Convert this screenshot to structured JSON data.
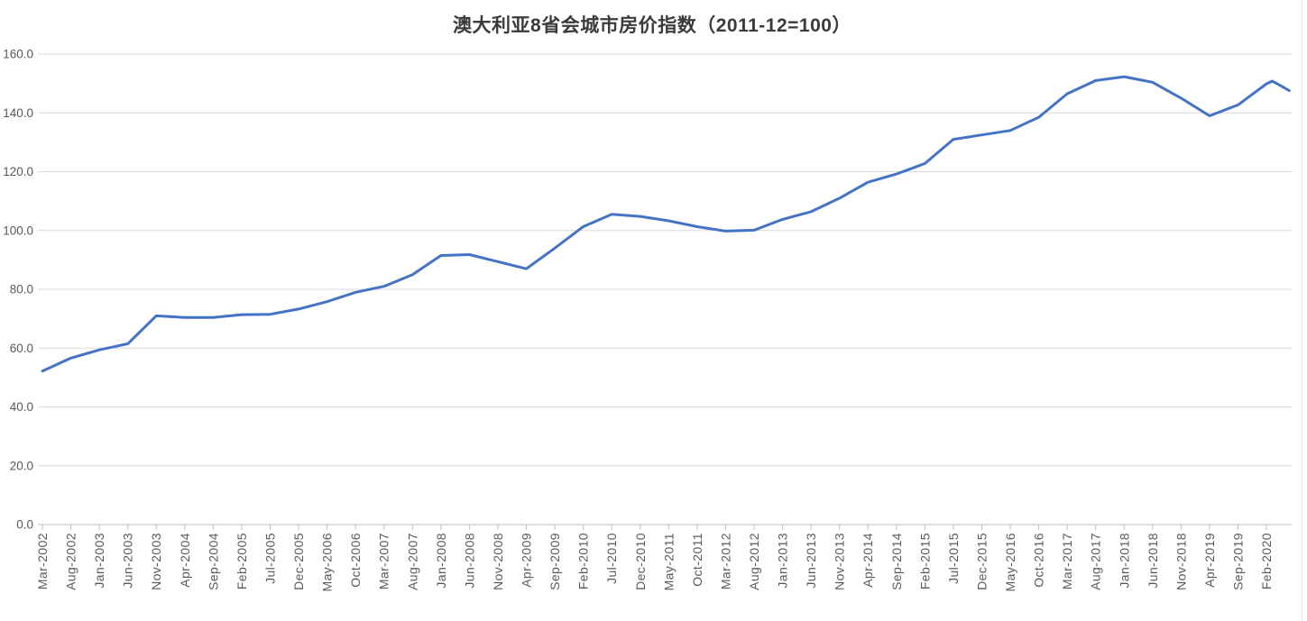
{
  "chart_data": {
    "type": "line",
    "title": "澳大利亚8省会城市房价指数（2011-12=100）",
    "categories": [
      "Mar-2002",
      "Aug-2002",
      "Jan-2003",
      "Jun-2003",
      "Nov-2003",
      "Apr-2004",
      "Sep-2004",
      "Feb-2005",
      "Jul-2005",
      "Dec-2005",
      "May-2006",
      "Oct-2006",
      "Mar-2007",
      "Aug-2007",
      "Jan-2008",
      "Jun-2008",
      "Nov-2008",
      "Apr-2009",
      "Sep-2009",
      "Feb-2010",
      "Jul-2010",
      "Dec-2010",
      "May-2011",
      "Oct-2011",
      "Mar-2012",
      "Aug-2012",
      "Jan-2013",
      "Jun-2013",
      "Nov-2013",
      "Apr-2014",
      "Sep-2014",
      "Feb-2015",
      "Jul-2015",
      "Dec-2015",
      "May-2016",
      "Oct-2016",
      "Mar-2017",
      "Aug-2017",
      "Jan-2018",
      "Jun-2018",
      "Nov-2018",
      "Apr-2019",
      "Sep-2019",
      "Feb-2020"
    ],
    "values": [
      52.2,
      56.6,
      59.4,
      61.5,
      71.0,
      70.4,
      70.4,
      71.4,
      71.5,
      73.3,
      75.8,
      79.0,
      81.0,
      85.0,
      91.5,
      91.8,
      89.4,
      87.0,
      94.0,
      101.3,
      105.5,
      104.8,
      103.3,
      101.3,
      99.8,
      100.1,
      103.8,
      106.4,
      111.0,
      116.4,
      119.2,
      122.8,
      131.0,
      132.5,
      134.0,
      138.5,
      146.5,
      151.0,
      152.3,
      150.4,
      145.0,
      139.0,
      142.7,
      149.9
    ],
    "trailing_values": [
      150.8,
      149.8,
      148.7,
      147.6
    ],
    "trailing_note": "series continues one month per point past the last axis label",
    "category_interval_months": 5,
    "ylim": [
      0,
      160
    ],
    "ytick_step": 20,
    "ytick_labels": [
      "0.0",
      "20.0",
      "40.0",
      "60.0",
      "80.0",
      "100.0",
      "120.0",
      "140.0",
      "160.0"
    ],
    "grid": "horizontal",
    "legend": "none",
    "x_label_rotation": -90,
    "line_color": "#4472C4",
    "gridline_color": "#D9D9D9",
    "axis_line_color": "#BFBFBF",
    "label_color": "#595959",
    "title_color": "#3B3B3B"
  }
}
